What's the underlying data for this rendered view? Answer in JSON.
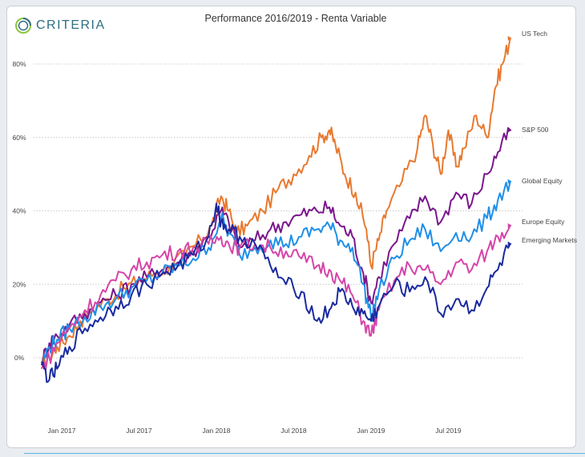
{
  "brand": {
    "logo_text": "CRITERIA"
  },
  "chart_data": {
    "type": "line",
    "title": "Performance 2016/2019 - Renta Variable",
    "xlabel": "",
    "ylabel": "",
    "x_ticks": [
      {
        "label": "Jan 2017",
        "t": 2017.0
      },
      {
        "label": "Jul 2017",
        "t": 2017.5
      },
      {
        "label": "Jan 2018",
        "t": 2018.0
      },
      {
        "label": "Jul 2018",
        "t": 2018.5
      },
      {
        "label": "Jan 2019",
        "t": 2019.0
      },
      {
        "label": "Jul 2019",
        "t": 2019.5
      }
    ],
    "xlim": [
      2016.86,
      2019.91
    ],
    "y_ticks": [
      {
        "label": "0%",
        "v": 0
      },
      {
        "label": "20%",
        "v": 20
      },
      {
        "label": "40%",
        "v": 40
      },
      {
        "label": "60%",
        "v": 60
      },
      {
        "label": "80%",
        "v": 80
      }
    ],
    "ylim": [
      -20,
      95
    ],
    "grid": "horizontal-dotted",
    "legend": "right, at line ends",
    "series": [
      {
        "name": "US Tech",
        "color": "#e8792f",
        "x": [
          2016.87,
          2016.92,
          2016.97,
          2017.05,
          2017.12,
          2017.2,
          2017.3,
          2017.4,
          2017.5,
          2017.6,
          2017.7,
          2017.8,
          2017.9,
          2017.97,
          2018.03,
          2018.08,
          2018.13,
          2018.2,
          2018.3,
          2018.4,
          2018.5,
          2018.6,
          2018.68,
          2018.73,
          2018.77,
          2018.83,
          2018.9,
          2018.97,
          2019.0,
          2019.05,
          2019.1,
          2019.2,
          2019.3,
          2019.35,
          2019.4,
          2019.45,
          2019.5,
          2019.55,
          2019.6,
          2019.68,
          2019.75,
          2019.8,
          2019.85,
          2019.9
        ],
        "y": [
          -2,
          0,
          3,
          6,
          10,
          13,
          16,
          19,
          21,
          23,
          25,
          28,
          32,
          36,
          44,
          40,
          34,
          36,
          40,
          46,
          50,
          55,
          60,
          62,
          58,
          50,
          45,
          35,
          25,
          32,
          40,
          48,
          57,
          66,
          58,
          50,
          62,
          52,
          57,
          66,
          60,
          73,
          80,
          87
        ]
      },
      {
        "name": "S&P 500",
        "color": "#7a168d",
        "x": [
          2016.87,
          2016.92,
          2016.97,
          2017.05,
          2017.15,
          2017.25,
          2017.35,
          2017.45,
          2017.55,
          2017.65,
          2017.75,
          2017.85,
          2017.95,
          2018.03,
          2018.08,
          2018.15,
          2018.25,
          2018.35,
          2018.45,
          2018.55,
          2018.65,
          2018.73,
          2018.8,
          2018.88,
          2018.95,
          2019.0,
          2019.05,
          2019.15,
          2019.25,
          2019.35,
          2019.45,
          2019.55,
          2019.65,
          2019.75,
          2019.82,
          2019.9
        ],
        "y": [
          -1,
          4,
          6,
          9,
          12,
          15,
          17,
          20,
          22,
          24,
          26,
          29,
          33,
          40,
          37,
          30,
          32,
          35,
          37,
          39,
          40,
          41,
          36,
          33,
          23,
          15,
          22,
          31,
          38,
          44,
          37,
          45,
          42,
          50,
          56,
          62
        ]
      },
      {
        "name": "Global Equity",
        "color": "#1f8fe8",
        "x": [
          2016.87,
          2016.92,
          2016.97,
          2017.05,
          2017.15,
          2017.25,
          2017.35,
          2017.45,
          2017.55,
          2017.65,
          2017.75,
          2017.85,
          2017.95,
          2018.03,
          2018.08,
          2018.15,
          2018.25,
          2018.35,
          2018.45,
          2018.55,
          2018.65,
          2018.73,
          2018.8,
          2018.88,
          2018.95,
          2019.0,
          2019.05,
          2019.15,
          2019.25,
          2019.35,
          2019.45,
          2019.55,
          2019.65,
          2019.75,
          2019.82,
          2019.9
        ],
        "y": [
          -2,
          3,
          5,
          8,
          11,
          14,
          16,
          19,
          21,
          23,
          25,
          27,
          30,
          38,
          34,
          28,
          30,
          32,
          31,
          33,
          35,
          36,
          32,
          30,
          20,
          11,
          18,
          27,
          32,
          35,
          29,
          34,
          33,
          38,
          43,
          48
        ]
      },
      {
        "name": "Europe Equity",
        "color": "#d545a8",
        "x": [
          2016.87,
          2016.92,
          2016.97,
          2017.05,
          2017.15,
          2017.25,
          2017.35,
          2017.45,
          2017.55,
          2017.65,
          2017.75,
          2017.85,
          2017.95,
          2018.03,
          2018.08,
          2018.15,
          2018.25,
          2018.35,
          2018.45,
          2018.55,
          2018.65,
          2018.73,
          2018.8,
          2018.88,
          2018.95,
          2019.0,
          2019.05,
          2019.15,
          2019.25,
          2019.35,
          2019.45,
          2019.55,
          2019.65,
          2019.75,
          2019.82,
          2019.9
        ],
        "y": [
          -3,
          0,
          4,
          8,
          13,
          17,
          21,
          24,
          26,
          28,
          29,
          30,
          31,
          33,
          31,
          30,
          31,
          30,
          29,
          27,
          25,
          24,
          21,
          17,
          10,
          6,
          13,
          21,
          25,
          24,
          20,
          26,
          24,
          29,
          33,
          36
        ]
      },
      {
        "name": "Emerging Markets",
        "color": "#1a2a9e",
        "x": [
          2016.87,
          2016.92,
          2016.97,
          2017.05,
          2017.15,
          2017.25,
          2017.35,
          2017.45,
          2017.55,
          2017.65,
          2017.75,
          2017.85,
          2017.95,
          2018.0,
          2018.03,
          2018.08,
          2018.15,
          2018.25,
          2018.35,
          2018.45,
          2018.55,
          2018.65,
          2018.73,
          2018.8,
          2018.88,
          2018.95,
          2019.0,
          2019.05,
          2019.15,
          2019.25,
          2019.35,
          2019.45,
          2019.55,
          2019.65,
          2019.75,
          2019.82,
          2019.9
        ],
        "y": [
          -2,
          -6,
          -3,
          3,
          8,
          11,
          14,
          17,
          20,
          23,
          25,
          28,
          33,
          42,
          37,
          35,
          33,
          31,
          25,
          20,
          18,
          10,
          13,
          18,
          14,
          12,
          10,
          14,
          20,
          18,
          22,
          12,
          16,
          13,
          19,
          24,
          31
        ]
      }
    ]
  }
}
